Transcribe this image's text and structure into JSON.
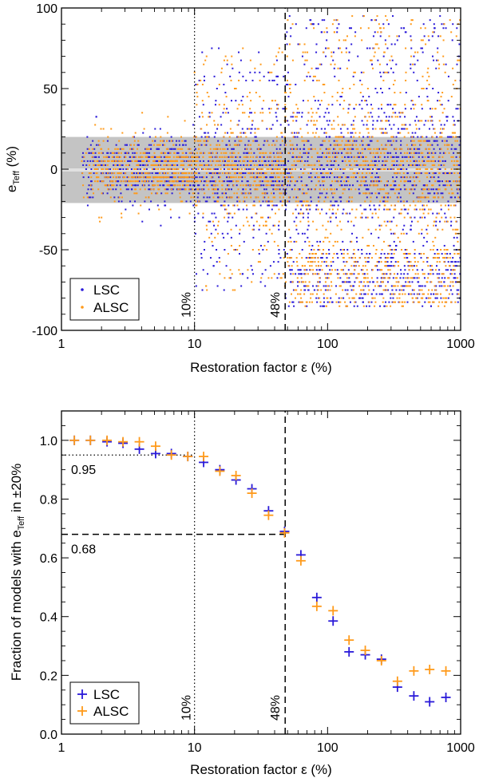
{
  "chart_data": [
    {
      "type": "scatter",
      "xscale": "log",
      "xlim": [
        1,
        1000
      ],
      "ylim": [
        -100,
        100
      ],
      "xticks": [
        "1",
        "10",
        "100",
        "1000"
      ],
      "yticks": [
        "-100",
        "-50",
        "0",
        "50",
        "100"
      ],
      "xlabel": "Restoration factor ε (%)",
      "ylabel": {
        "base": "e",
        "sub": "Teff",
        "suffix": " (%)"
      },
      "shaded_band": [
        -20,
        20
      ],
      "vlines": [
        {
          "x": 10,
          "style": "dotted",
          "label": "10%"
        },
        {
          "x": 48,
          "style": "dashed",
          "label": "48%"
        }
      ],
      "legend": {
        "position": "bottom-left",
        "entries": [
          "LSC",
          "ALSC"
        ]
      },
      "series": [
        {
          "name": "LSC",
          "color": "#2a1ad9",
          "marker": "dot"
        },
        {
          "name": "ALSC",
          "color": "#ff9a1a",
          "marker": "dot"
        }
      ],
      "note": "dense point clouds: near 0 and within ±20% for small ε, spreading over the full range for ε > 10%"
    },
    {
      "type": "scatter",
      "xscale": "log",
      "xlim": [
        1,
        1000
      ],
      "ylim": [
        0,
        1.1
      ],
      "xticks": [
        "1",
        "10",
        "100",
        "1000"
      ],
      "yticks": [
        "0.0",
        "0.2",
        "0.4",
        "0.6",
        "0.8",
        "1.0"
      ],
      "xlabel": "Restoration factor ε (%)",
      "ylabel": {
        "base": "Fraction of models with e",
        "sub": "Teff",
        "suffix": " in ±20%"
      },
      "vlines": [
        {
          "x": 10,
          "style": "dotted",
          "label": "10%"
        },
        {
          "x": 48,
          "style": "dashed",
          "label": "48%"
        }
      ],
      "hlines": [
        {
          "y": 0.95,
          "style": "dotted",
          "label": "0.95",
          "xmax": 10
        },
        {
          "y": 0.68,
          "style": "dashed",
          "label": "0.68",
          "xmax": 48
        }
      ],
      "legend": {
        "position": "bottom-left",
        "entries": [
          "LSC",
          "ALSC"
        ]
      },
      "x": [
        1.25,
        1.65,
        2.2,
        2.9,
        3.85,
        5.1,
        6.7,
        8.9,
        11.7,
        15.5,
        20.5,
        27,
        36,
        47.5,
        63,
        83,
        110,
        145,
        192,
        254,
        335,
        445,
        585,
        775
      ],
      "series": [
        {
          "name": "LSC",
          "color": "#2a1ad9",
          "marker": "plus",
          "values": [
            1.0,
            1.0,
            0.995,
            0.99,
            0.97,
            0.955,
            0.955,
            0.945,
            0.925,
            0.9,
            0.865,
            0.835,
            0.76,
            0.69,
            0.61,
            0.465,
            0.385,
            0.28,
            0.27,
            0.255,
            0.16,
            0.13,
            0.11,
            0.125
          ]
        },
        {
          "name": "ALSC",
          "color": "#ff9a1a",
          "marker": "plus",
          "values": [
            1.0,
            1.0,
            1.0,
            0.995,
            0.995,
            0.98,
            0.95,
            0.945,
            0.945,
            0.895,
            0.88,
            0.82,
            0.745,
            0.685,
            0.59,
            0.435,
            0.42,
            0.32,
            0.285,
            0.25,
            0.18,
            0.215,
            0.22,
            0.215
          ]
        }
      ]
    }
  ]
}
